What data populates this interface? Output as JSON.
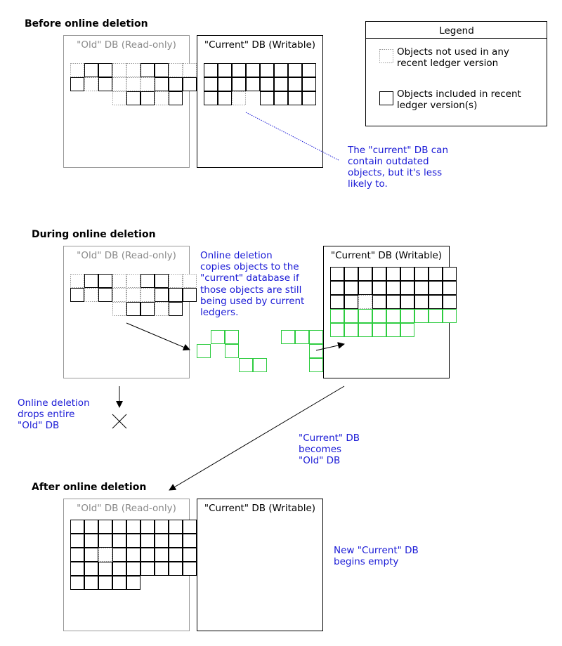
{
  "sections": {
    "before": "Before online deletion",
    "during": "During online deletion",
    "after": "After online deletion"
  },
  "db_labels": {
    "old": "\"Old\" DB (Read-only)",
    "current": "\"Current\" DB (Writable)"
  },
  "legend": {
    "title": "Legend",
    "unused": [
      "Objects not used in any",
      "recent ledger version"
    ],
    "used": [
      "Objects included in recent",
      "ledger version(s)"
    ]
  },
  "notes": {
    "current_outdated": [
      "The \"current\" DB can",
      "contain outdated",
      "objects, but it's less",
      "likely to."
    ],
    "copy": [
      "Online deletion",
      "copies objects to the",
      "\"current\" database if",
      "those objects are still",
      "being used by current",
      "ledgers."
    ],
    "drops": [
      "Online deletion",
      "drops entire",
      "\"Old\" DB"
    ],
    "becomes": [
      "\"Current\" DB",
      "becomes",
      "\"Old\" DB"
    ],
    "empty": [
      "New \"Current\" DB",
      "begins empty"
    ]
  },
  "colors": {
    "blue": "#1a1ad6",
    "green": "#2ecc40",
    "gray": "#8a8a8a"
  }
}
